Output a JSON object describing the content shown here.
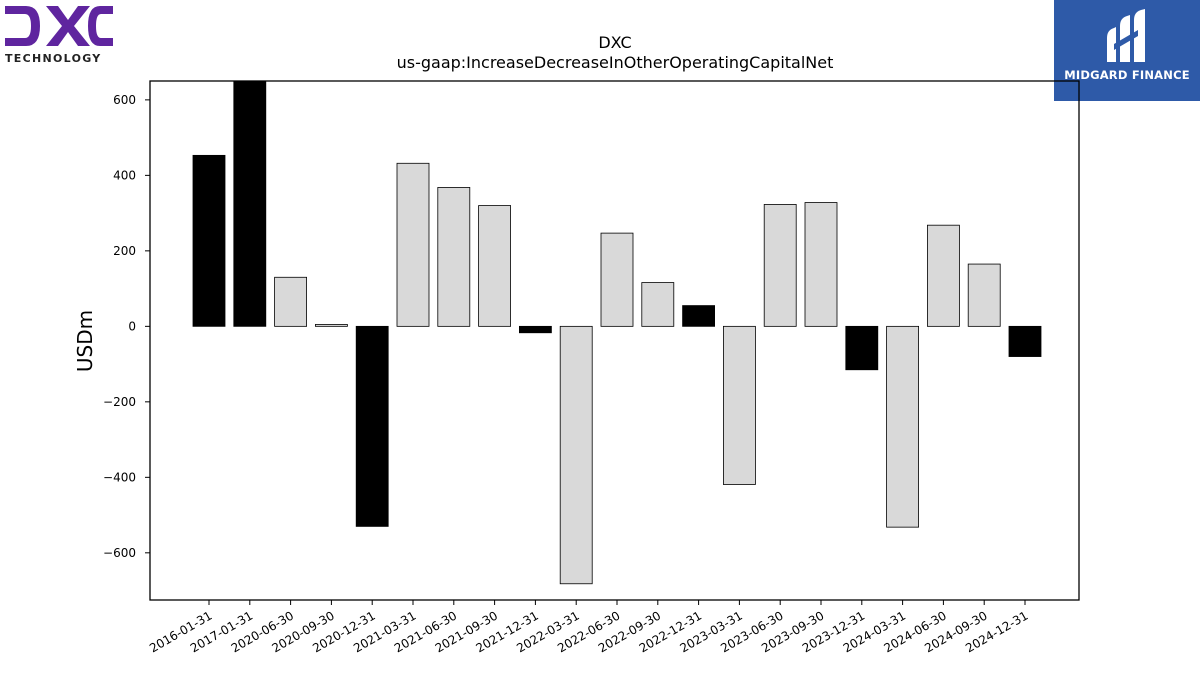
{
  "logos": {
    "left": {
      "icon": "dxc-logo-icon",
      "wordmark": "DXC",
      "subtitle": "TECHNOLOGY",
      "color": "#5f259f"
    },
    "right": {
      "icon": "midgard-logo-icon",
      "text": "MIDGARD FINANCE",
      "background": "#2e5aa8"
    }
  },
  "chart_data": {
    "type": "bar",
    "title": "DXC",
    "subtitle": "us-gaap:IncreaseDecreaseInOtherOperatingCapitalNet",
    "xlabel": "",
    "ylabel": "USDm",
    "ylim": [
      -725,
      650
    ],
    "yticks": [
      -600,
      -400,
      -200,
      0,
      200,
      400,
      600
    ],
    "ytick_labels": [
      "−600",
      "−400",
      "−200",
      "0",
      "200",
      "400",
      "600"
    ],
    "grid": false,
    "legend": "none",
    "categories": [
      "2016-01-31",
      "2017-01-31",
      "2020-06-30",
      "2020-09-30",
      "2020-12-31",
      "2021-03-31",
      "2021-06-30",
      "2021-09-30",
      "2021-12-31",
      "2022-03-31",
      "2022-06-30",
      "2022-09-30",
      "2022-12-31",
      "2023-03-31",
      "2023-06-30",
      "2023-09-30",
      "2023-12-31",
      "2024-03-31",
      "2024-06-30",
      "2024-09-30",
      "2024-12-31"
    ],
    "values": [
      453,
      650,
      130,
      5,
      -530,
      432,
      368,
      320,
      -17,
      -682,
      247,
      116,
      55,
      -419,
      323,
      328,
      -115,
      -532,
      268,
      165,
      -80
    ],
    "bar_colors": [
      "#000000",
      "#000000",
      "#d9d9d9",
      "#d9d9d9",
      "#000000",
      "#d9d9d9",
      "#d9d9d9",
      "#d9d9d9",
      "#000000",
      "#d9d9d9",
      "#d9d9d9",
      "#d9d9d9",
      "#000000",
      "#d9d9d9",
      "#d9d9d9",
      "#d9d9d9",
      "#000000",
      "#d9d9d9",
      "#d9d9d9",
      "#d9d9d9",
      "#000000"
    ]
  }
}
